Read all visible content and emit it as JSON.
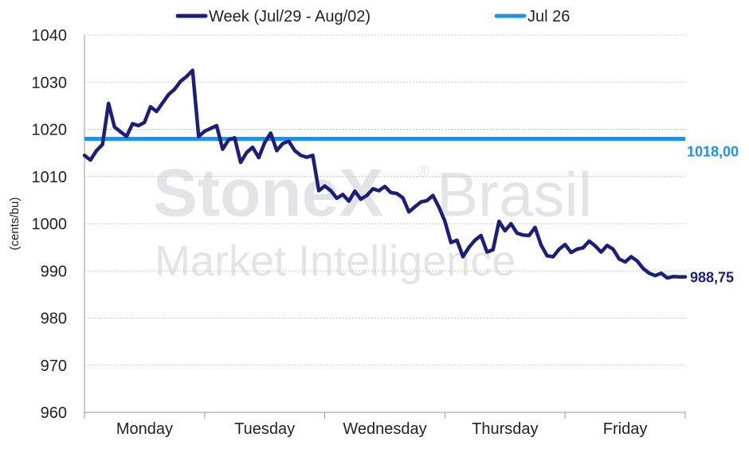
{
  "chart_data": {
    "type": "line",
    "ylabel": "(cents/bu)",
    "ylim": [
      960,
      1040
    ],
    "yticks": [
      960,
      970,
      980,
      990,
      1000,
      1010,
      1020,
      1030,
      1040
    ],
    "categories": [
      "Monday",
      "Tuesday",
      "Wednesday",
      "Thursday",
      "Friday"
    ],
    "grid": true,
    "legend_position": "top",
    "series": [
      {
        "name": "Week (Jul/29 - Aug/02)",
        "color": "#1b1f7a",
        "end_label": "988,75",
        "x": [
          0.0,
          0.05,
          0.1,
          0.15,
          0.2,
          0.25,
          0.3,
          0.35,
          0.4,
          0.45,
          0.5,
          0.55,
          0.6,
          0.65,
          0.7,
          0.75,
          0.8,
          0.85,
          0.9,
          0.95,
          1.0,
          1.05,
          1.1,
          1.15,
          1.2,
          1.25,
          1.3,
          1.35,
          1.4,
          1.45,
          1.5,
          1.55,
          1.6,
          1.65,
          1.7,
          1.75,
          1.8,
          1.85,
          1.9,
          1.95,
          2.0,
          2.05,
          2.1,
          2.15,
          2.2,
          2.25,
          2.3,
          2.35,
          2.4,
          2.45,
          2.5,
          2.55,
          2.6,
          2.65,
          2.7,
          2.75,
          2.8,
          2.85,
          2.9,
          2.95,
          3.0,
          3.05,
          3.1,
          3.15,
          3.2,
          3.25,
          3.3,
          3.35,
          3.4,
          3.45,
          3.5,
          3.55,
          3.6,
          3.65,
          3.7,
          3.75,
          3.8,
          3.85,
          3.9,
          3.95,
          4.0,
          4.05,
          4.1,
          4.15,
          4.2,
          4.25,
          4.3,
          4.35,
          4.4,
          4.45,
          4.5,
          4.55,
          4.6,
          4.65,
          4.7,
          4.75,
          4.8,
          4.85,
          4.9,
          4.95,
          5.0
        ],
        "values": [
          1014.5,
          1013.5,
          1015.5,
          1016.8,
          1025.5,
          1020.5,
          1019.5,
          1018.5,
          1021.2,
          1020.8,
          1021.5,
          1024.8,
          1023.8,
          1025.6,
          1027.4,
          1028.5,
          1030.2,
          1031.2,
          1032.5,
          1018.5,
          1019.6,
          1020.2,
          1020.8,
          1015.8,
          1017.8,
          1018.2,
          1013.0,
          1015.1,
          1016.2,
          1014.0,
          1017.2,
          1019.2,
          1015.5,
          1017.0,
          1017.5,
          1015.5,
          1014.5,
          1014.1,
          1014.5,
          1007.0,
          1008.0,
          1007.0,
          1005.4,
          1006.2,
          1004.8,
          1006.9,
          1005.2,
          1006.0,
          1007.4,
          1007.0,
          1007.9,
          1006.6,
          1006.4,
          1005.5,
          1002.5,
          1003.6,
          1004.6,
          1004.9,
          1006.0,
          1003.5,
          1000.5,
          996.0,
          996.5,
          993.0,
          995.0,
          996.5,
          997.5,
          994.0,
          994.5,
          1000.5,
          998.5,
          1000.0,
          998.0,
          997.6,
          997.5,
          999.2,
          995.5,
          993.2,
          993.0,
          994.6,
          995.6,
          993.9,
          994.6,
          994.9,
          996.3,
          995.3,
          994.0,
          995.4,
          994.6,
          992.5,
          991.9,
          993.0,
          992.1,
          990.5,
          989.5,
          989.0,
          989.5,
          988.5,
          988.8,
          988.75,
          988.75
        ]
      },
      {
        "name": "Jul 26",
        "color": "#1f8fe8",
        "end_label": "1018,00",
        "constant": 1018.0
      }
    ]
  },
  "watermark": {
    "line1": "StoneX",
    "line1b": "Brasil",
    "registered": "®",
    "line2": "Market Intelligence"
  }
}
